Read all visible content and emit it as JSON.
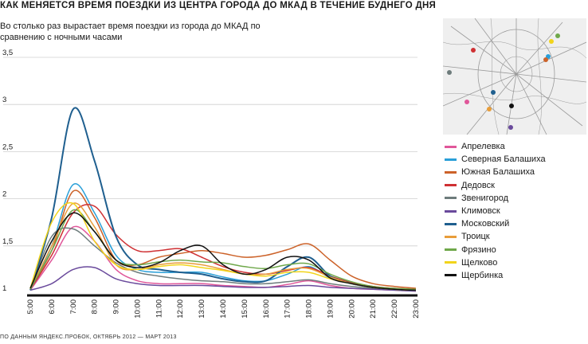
{
  "title": "КАК МЕНЯЕТСЯ ВРЕМЯ ПОЕЗДКИ ИЗ ЦЕНТРА ГОРОДА ДО МКАД В ТЕЧЕНИЕ БУДНЕГО ДНЯ",
  "subtitle": "Во столько раз вырастает время поездки из города до МКАД по сравнению с ночными часами",
  "source": "ПО ДАННЫМ ЯНДЕКС.ПРОБОК, ОКТЯБРЬ 2012 — МАРТ 2013",
  "chart_data": {
    "type": "line",
    "x": [
      "5:00",
      "6:00",
      "7:00",
      "8:00",
      "9:00",
      "10:00",
      "11:00",
      "12:00",
      "13:00",
      "14:00",
      "15:00",
      "16:00",
      "17:00",
      "18:00",
      "19:00",
      "20:00",
      "21:00",
      "22:00",
      "23:00"
    ],
    "y_ticks": [
      "3,5",
      "3",
      "2,5",
      "2",
      "1,5",
      "1"
    ],
    "y_tick_values": [
      3.5,
      3,
      2.5,
      2,
      1.5,
      1
    ],
    "ylim": [
      1,
      3.5
    ],
    "grid": "horizontal",
    "legend_position": "right",
    "series": [
      {
        "name": "Апрелевка",
        "color": "#e0579a",
        "values": [
          1.03,
          1.35,
          1.7,
          1.55,
          1.25,
          1.13,
          1.1,
          1.1,
          1.1,
          1.08,
          1.07,
          1.06,
          1.09,
          1.13,
          1.08,
          1.05,
          1.04,
          1.03,
          1.02
        ]
      },
      {
        "name": "Северная Балашиха",
        "color": "#2a9fd8",
        "values": [
          1.05,
          1.5,
          2.15,
          1.85,
          1.4,
          1.25,
          1.22,
          1.22,
          1.22,
          1.17,
          1.13,
          1.13,
          1.2,
          1.28,
          1.16,
          1.1,
          1.06,
          1.04,
          1.03
        ]
      },
      {
        "name": "Южная Балашиха",
        "color": "#cc6229",
        "values": [
          1.05,
          1.45,
          2.08,
          1.8,
          1.35,
          1.3,
          1.38,
          1.42,
          1.45,
          1.42,
          1.38,
          1.4,
          1.46,
          1.52,
          1.35,
          1.18,
          1.1,
          1.07,
          1.05
        ]
      },
      {
        "name": "Дедовск",
        "color": "#cf3033",
        "values": [
          1.04,
          1.4,
          1.85,
          1.92,
          1.62,
          1.45,
          1.45,
          1.47,
          1.38,
          1.28,
          1.22,
          1.2,
          1.24,
          1.27,
          1.18,
          1.11,
          1.07,
          1.05,
          1.04
        ]
      },
      {
        "name": "Звенигород",
        "color": "#6e7c7c",
        "values": [
          1.03,
          1.6,
          1.68,
          1.5,
          1.32,
          1.22,
          1.18,
          1.15,
          1.13,
          1.12,
          1.1,
          1.1,
          1.12,
          1.14,
          1.1,
          1.07,
          1.05,
          1.04,
          1.03
        ]
      },
      {
        "name": "Климовск",
        "color": "#6a4a9c",
        "values": [
          1.03,
          1.1,
          1.25,
          1.27,
          1.15,
          1.1,
          1.08,
          1.08,
          1.08,
          1.07,
          1.06,
          1.06,
          1.07,
          1.08,
          1.06,
          1.05,
          1.04,
          1.03,
          1.02
        ]
      },
      {
        "name": "Московский",
        "color": "#1f5f8f",
        "values": [
          1.03,
          1.8,
          2.95,
          2.4,
          1.6,
          1.3,
          1.25,
          1.22,
          1.2,
          1.15,
          1.12,
          1.13,
          1.28,
          1.38,
          1.18,
          1.1,
          1.06,
          1.04,
          1.03
        ]
      },
      {
        "name": "Троицк",
        "color": "#e89d3a",
        "values": [
          1.04,
          1.5,
          1.95,
          1.7,
          1.3,
          1.25,
          1.3,
          1.32,
          1.3,
          1.25,
          1.2,
          1.2,
          1.25,
          1.26,
          1.17,
          1.1,
          1.06,
          1.04,
          1.03
        ]
      },
      {
        "name": "Фрязино",
        "color": "#6fa84a",
        "values": [
          1.04,
          1.45,
          1.88,
          1.65,
          1.35,
          1.3,
          1.33,
          1.35,
          1.33,
          1.32,
          1.28,
          1.26,
          1.3,
          1.31,
          1.2,
          1.12,
          1.07,
          1.05,
          1.04
        ]
      },
      {
        "name": "Щелково",
        "color": "#f2d41a",
        "values": [
          1.05,
          1.75,
          1.95,
          1.55,
          1.3,
          1.25,
          1.28,
          1.3,
          1.27,
          1.24,
          1.2,
          1.18,
          1.22,
          1.22,
          1.15,
          1.1,
          1.06,
          1.04,
          1.03
        ]
      },
      {
        "name": "Щербинка",
        "color": "#111111",
        "values": [
          1.05,
          1.55,
          1.85,
          1.65,
          1.35,
          1.27,
          1.32,
          1.45,
          1.5,
          1.3,
          1.2,
          1.25,
          1.38,
          1.35,
          1.16,
          1.1,
          1.06,
          1.04,
          1.03
        ]
      }
    ]
  }
}
